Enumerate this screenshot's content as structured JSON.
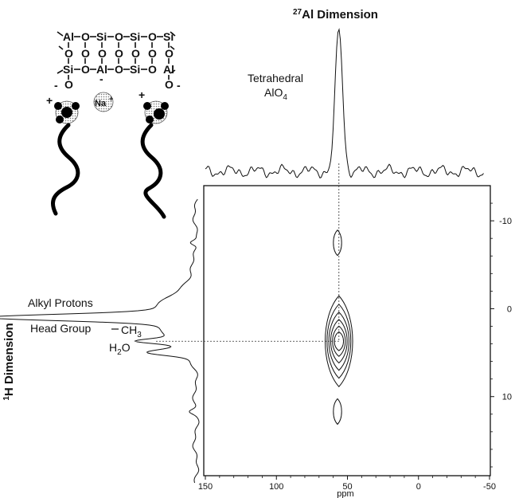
{
  "chart_data": {
    "type": "2d-nmr-contour",
    "title_sup": "27",
    "title_main": "Al Dimension",
    "xlabel": "ppm",
    "ylabel_sup": "1",
    "ylabel_main": "H Dimension",
    "xlim": [
      150,
      -50
    ],
    "ylim": [
      -14,
      19
    ],
    "x_ticks": [
      150,
      100,
      50,
      0,
      -50
    ],
    "y_ticks": [
      -10,
      0,
      10
    ],
    "annotations": {
      "tetrahedral_line1": "Tetrahedral",
      "tetrahedral_line2": "AlO",
      "tetrahedral_sub": "4",
      "alkyl": "Alkyl Protons",
      "head_group": "Head Group",
      "ch3_main": "CH",
      "ch3_sub": "3",
      "h2o_h": "H",
      "h2o_sub": "2",
      "h2o_o": "O"
    },
    "top_projection_peak": {
      "x": 56,
      "label": "Tetrahedral AlO4"
    },
    "left_projection_peaks": [
      {
        "y": 1.0,
        "label": "Alkyl Protons"
      },
      {
        "y": 3.7,
        "label": "Head Group CH3"
      },
      {
        "y": 5.0,
        "label": "H2O"
      }
    ],
    "contour_peaks": [
      {
        "x": 57,
        "y": -7.5,
        "levels": 1
      },
      {
        "x": 56,
        "y": 3.7,
        "levels": 6
      },
      {
        "x": 57,
        "y": 11.7,
        "levels": 1
      }
    ]
  },
  "structure_labels": {
    "al": "Al",
    "si": "Si",
    "o": "O",
    "na": "Na",
    "plus": "+",
    "minus": "-"
  }
}
